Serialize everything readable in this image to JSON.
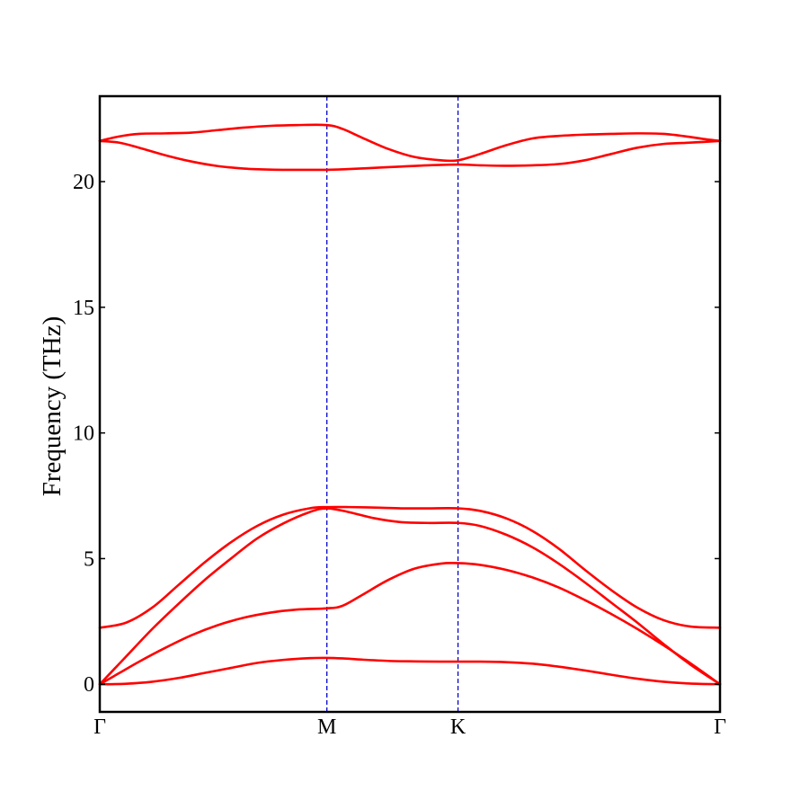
{
  "chart_data": {
    "type": "line",
    "title": "",
    "xlabel": "",
    "ylabel": "Frequency (THz)",
    "ylim": [
      -1.1,
      23.4
    ],
    "xlim": [
      0,
      4.73
    ],
    "yticks": [
      0,
      5,
      10,
      15,
      20
    ],
    "ytick_labels": [
      "0",
      "5",
      "10",
      "15",
      "20"
    ],
    "high_symmetry_points": [
      {
        "label": "Γ",
        "x": 0
      },
      {
        "label": "M",
        "x": 1.732
      },
      {
        "label": "K",
        "x": 2.732
      },
      {
        "label": "Γ",
        "x": 4.73
      }
    ],
    "grid": false,
    "legend": "none",
    "colors": {
      "bands": "#ff0000",
      "vlines": "#0000cc",
      "axes": "#000000"
    },
    "series": [
      {
        "x": [
          0,
          0.2,
          0.4,
          0.6,
          0.8,
          1.0,
          1.2,
          1.4,
          1.6,
          1.732,
          1.85,
          2.0,
          2.2,
          2.4,
          2.6,
          2.732,
          2.9,
          3.1,
          3.3,
          3.5,
          3.7,
          3.9,
          4.1,
          4.3,
          4.5,
          4.73
        ],
        "values": [
          0,
          0.02,
          0.1,
          0.25,
          0.45,
          0.65,
          0.85,
          0.97,
          1.04,
          1.05,
          1.03,
          0.98,
          0.93,
          0.91,
          0.9,
          0.9,
          0.9,
          0.88,
          0.82,
          0.7,
          0.55,
          0.38,
          0.22,
          0.1,
          0.03,
          0
        ]
      },
      {
        "x": [
          0,
          0.15,
          0.3,
          0.5,
          0.7,
          0.9,
          1.1,
          1.3,
          1.5,
          1.732,
          1.85,
          2.0,
          2.2,
          2.4,
          2.6,
          2.732,
          2.9,
          3.1,
          3.3,
          3.5,
          3.7,
          3.9,
          4.1,
          4.3,
          4.5,
          4.73
        ],
        "values": [
          0,
          0.45,
          0.9,
          1.45,
          1.95,
          2.35,
          2.65,
          2.85,
          2.97,
          3.02,
          3.12,
          3.55,
          4.15,
          4.6,
          4.8,
          4.82,
          4.75,
          4.55,
          4.25,
          3.85,
          3.35,
          2.8,
          2.2,
          1.55,
          0.85,
          0
        ]
      },
      {
        "x": [
          0,
          0.2,
          0.4,
          0.6,
          0.8,
          1.0,
          1.2,
          1.4,
          1.6,
          1.732,
          1.9,
          2.1,
          2.3,
          2.5,
          2.732,
          2.9,
          3.1,
          3.3,
          3.5,
          3.7,
          3.9,
          4.1,
          4.3,
          4.5,
          4.73
        ],
        "values": [
          0,
          1.1,
          2.2,
          3.2,
          4.15,
          5.0,
          5.8,
          6.4,
          6.85,
          7.0,
          6.85,
          6.6,
          6.45,
          6.42,
          6.42,
          6.3,
          5.95,
          5.45,
          4.8,
          4.05,
          3.25,
          2.45,
          1.6,
          0.8,
          0
        ]
      },
      {
        "x": [
          0,
          0.2,
          0.4,
          0.6,
          0.8,
          1.0,
          1.2,
          1.4,
          1.6,
          1.732,
          1.9,
          2.1,
          2.3,
          2.5,
          2.732,
          2.9,
          3.1,
          3.3,
          3.5,
          3.7,
          3.9,
          4.1,
          4.3,
          4.5,
          4.73
        ],
        "values": [
          2.25,
          2.45,
          3.05,
          3.95,
          4.85,
          5.65,
          6.3,
          6.75,
          7.0,
          7.05,
          7.05,
          7.03,
          7.0,
          7.0,
          7.0,
          6.9,
          6.6,
          6.1,
          5.4,
          4.55,
          3.75,
          3.05,
          2.55,
          2.3,
          2.25
        ]
      },
      {
        "x": [
          0,
          0.15,
          0.3,
          0.5,
          0.7,
          0.9,
          1.1,
          1.3,
          1.5,
          1.732,
          1.9,
          2.1,
          2.3,
          2.5,
          2.732,
          2.9,
          3.1,
          3.3,
          3.5,
          3.7,
          3.9,
          4.1,
          4.3,
          4.5,
          4.6,
          4.73
        ],
        "values": [
          21.62,
          21.55,
          21.35,
          21.05,
          20.8,
          20.62,
          20.52,
          20.48,
          20.47,
          20.47,
          20.5,
          20.55,
          20.6,
          20.65,
          20.68,
          20.65,
          20.63,
          20.65,
          20.7,
          20.85,
          21.1,
          21.35,
          21.5,
          21.55,
          21.58,
          21.62
        ]
      },
      {
        "x": [
          0,
          0.15,
          0.3,
          0.5,
          0.7,
          0.9,
          1.1,
          1.3,
          1.5,
          1.732,
          1.85,
          2.0,
          2.2,
          2.4,
          2.6,
          2.732,
          2.9,
          3.1,
          3.3,
          3.5,
          3.7,
          3.9,
          4.1,
          4.3,
          4.5,
          4.6,
          4.73
        ],
        "values": [
          21.62,
          21.8,
          21.9,
          21.92,
          21.95,
          22.05,
          22.15,
          22.22,
          22.25,
          22.25,
          22.1,
          21.75,
          21.3,
          20.98,
          20.85,
          20.85,
          21.1,
          21.45,
          21.72,
          21.82,
          21.87,
          21.9,
          21.92,
          21.9,
          21.78,
          21.7,
          21.62
        ]
      }
    ]
  }
}
